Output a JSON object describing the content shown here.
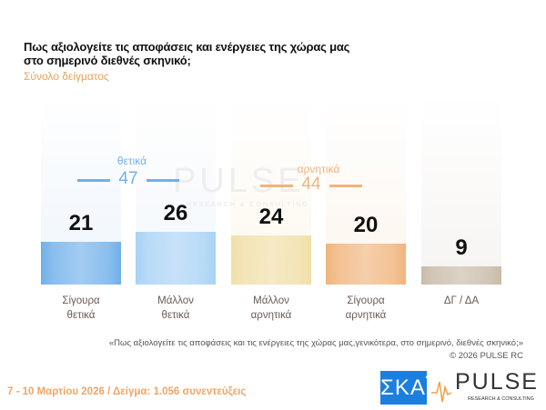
{
  "header": {
    "title_line1": "Πως αξιολογείτε τις αποφάσεις και ενέργειες της χώρας μας",
    "title_line2": "στο σημερινό διεθνές σκηνικό;",
    "subtitle": "Σύνολο δείγματος"
  },
  "chart_data": {
    "type": "bar",
    "categories": [
      "Σίγουρα θετικά",
      "Μάλλον θετικά",
      "Μάλλον αρνητικά",
      "Σίγουρα αρνητικά",
      "ΔΓ / ΔΑ"
    ],
    "category_lines": [
      [
        "Σίγουρα",
        "θετικά"
      ],
      [
        "Μάλλον",
        "θετικά"
      ],
      [
        "Μάλλον",
        "αρνητικά"
      ],
      [
        "Σίγουρα",
        "αρνητικά"
      ],
      [
        "ΔΓ / ΔΑ",
        ""
      ]
    ],
    "values": [
      21,
      26,
      24,
      20,
      9
    ],
    "value_labels": [
      "21",
      "26",
      "24",
      "20",
      "9"
    ],
    "colors": [
      "#6fb0ea",
      "#a9d2f5",
      "#f1dfa8",
      "#f0b47c",
      "#c9bba7"
    ],
    "panel_colors": [
      "#eef5fc",
      "#f2f7fc",
      "#fdf8ee",
      "#fdf5ee",
      "#f6f4f2"
    ],
    "ylim": [
      0,
      30
    ],
    "groups": [
      {
        "label": "θετικά",
        "total": "47",
        "color": "#6fb0ea"
      },
      {
        "label": "αρνητικά",
        "total": "44",
        "color": "#f0b47c"
      }
    ]
  },
  "watermark": "PULSE",
  "watermark_sub": "RESEARCH & CONSULTING",
  "footer": {
    "question": "«Πως αξιολογείτε τις αποφάσεις και τις ενέργειες της χώρας μας,γενικότερα, στο σημερινό, διεθνές σκηνικό;»",
    "copyright": "© 2026 PULSE RC",
    "date_sample": "7 - 10 Μαρτίου 2026 / Δείγμα: 1.056 συνεντεύξεις"
  },
  "logos": {
    "skai": "ΣΚΑΪ",
    "pulse": "PULSE",
    "pulse_sub": "RESEARCH & CONSULTING"
  }
}
